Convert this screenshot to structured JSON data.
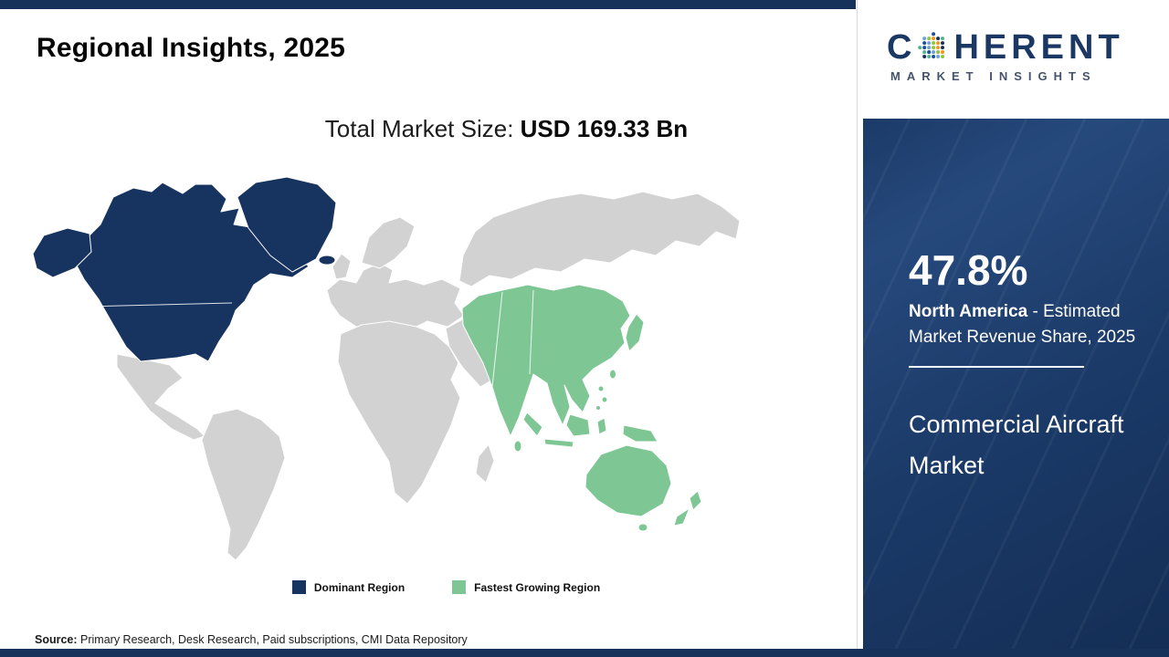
{
  "header": {
    "title": "Regional Insights, 2025"
  },
  "subtitle": {
    "label": "Total Market Size: ",
    "value": "USD 169.33 Bn"
  },
  "legend": {
    "dominant": {
      "label": "Dominant Region",
      "color": "#17335f"
    },
    "fastest": {
      "label": "Fastest Growing Region",
      "color": "#7ec795"
    }
  },
  "sidebar": {
    "share_value": "47.8%",
    "share_region": "North America",
    "share_rest": " - Estimated Market Revenue Share, 2025",
    "market_name": "Commercial Aircraft Market"
  },
  "logo": {
    "part1": "C",
    "part2": "HERENT",
    "subtext": "MARKET INSIGHTS"
  },
  "footer": {
    "source_label": "Source:",
    "source_text": " Primary Research, Desk Research, Paid subscriptions, CMI Data Repository"
  },
  "chart_data": {
    "type": "choropleth-map",
    "title": "Regional Insights, 2025",
    "year": 2025,
    "market": "Commercial Aircraft Market",
    "total_market_size_usd_bn": 169.33,
    "regions": [
      {
        "name": "North America",
        "classification": "Dominant Region",
        "estimated_market_revenue_share_pct_2025": 47.8,
        "map_color": "#17335f"
      },
      {
        "name": "Asia Pacific",
        "classification": "Fastest Growing Region",
        "map_color": "#7ec795"
      },
      {
        "name": "Rest of World",
        "classification": "Unhighlighted",
        "map_color": "#d2d2d2"
      }
    ],
    "legend_position": "bottom-center",
    "ocean_color": "#ffffff"
  }
}
